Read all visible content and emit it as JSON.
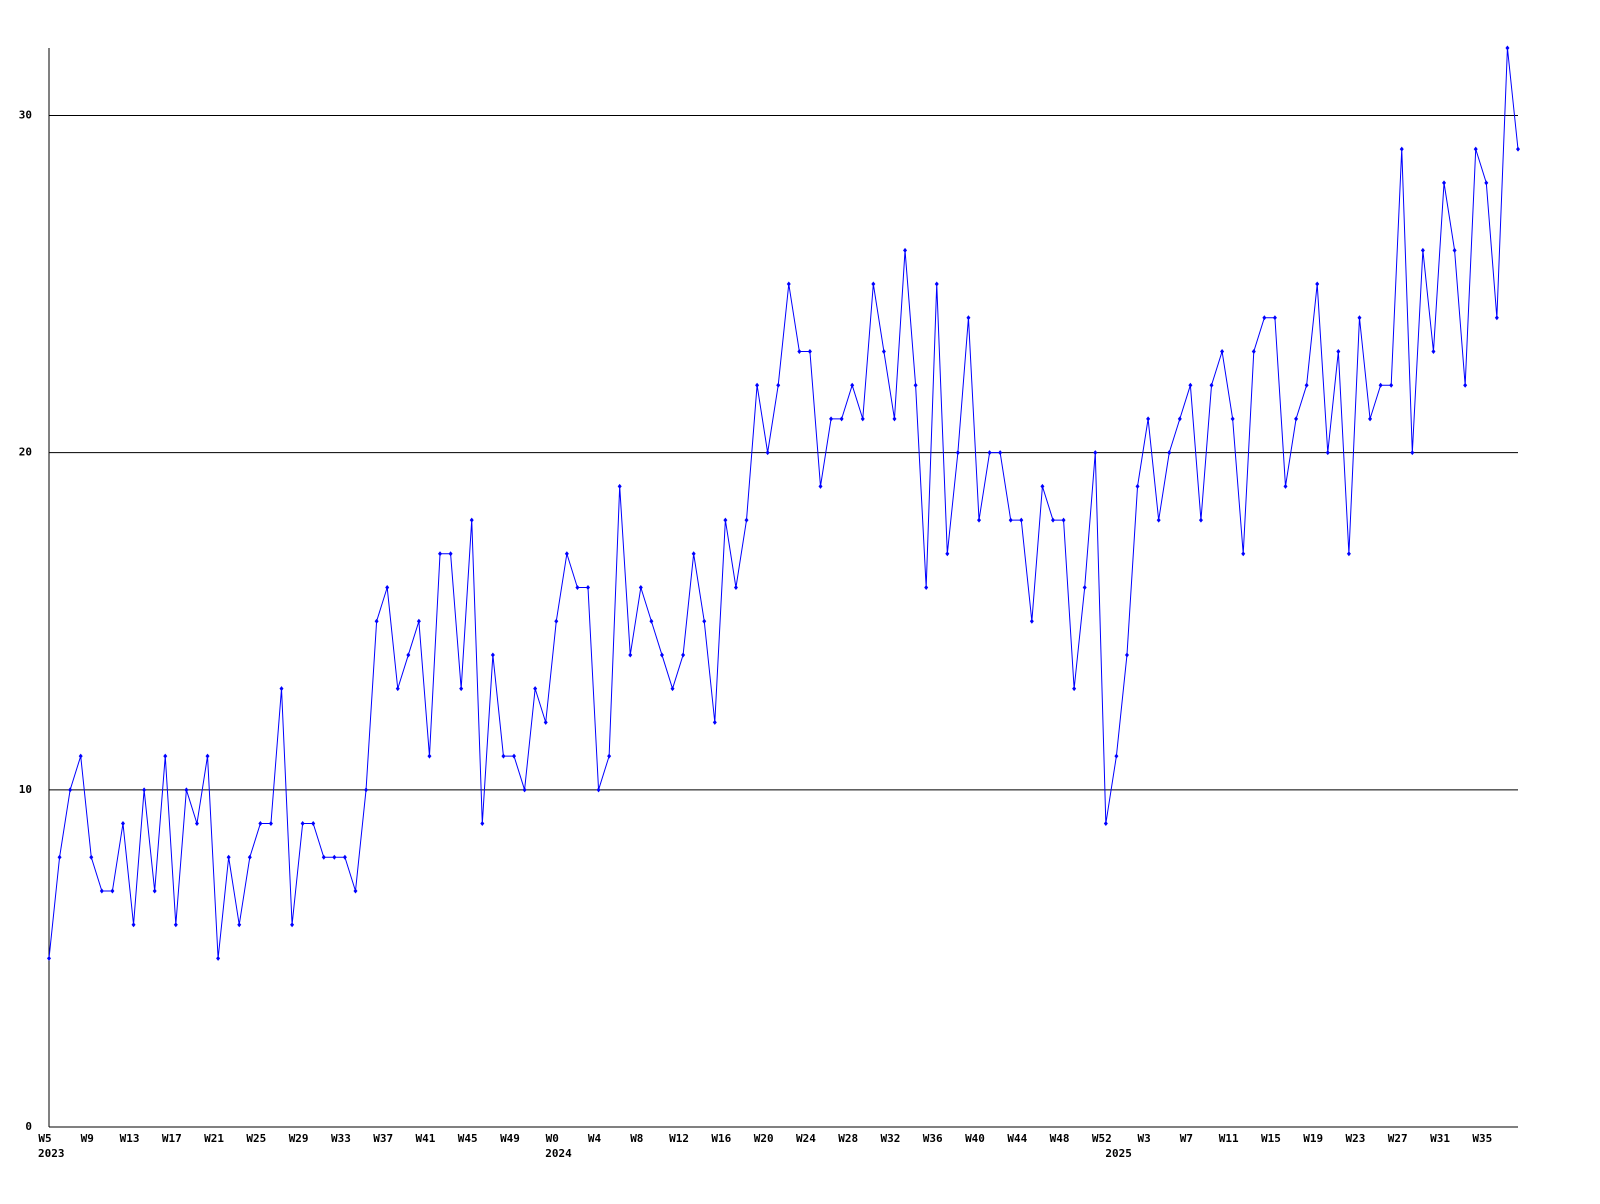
{
  "chart_data": {
    "type": "line",
    "categories": [
      "W5",
      null,
      null,
      null,
      "W9",
      null,
      null,
      null,
      "W13",
      null,
      null,
      null,
      "W17",
      null,
      null,
      null,
      "W21",
      null,
      null,
      null,
      "W25",
      null,
      null,
      null,
      "W29",
      null,
      null,
      null,
      "W33",
      null,
      null,
      null,
      "W37",
      null,
      null,
      null,
      "W41",
      null,
      null,
      null,
      "W45",
      null,
      null,
      null,
      "W49",
      null,
      null,
      null,
      "W0",
      null,
      null,
      null,
      "W4",
      null,
      null,
      null,
      "W8",
      null,
      null,
      null,
      "W12",
      null,
      null,
      null,
      "W16",
      null,
      null,
      null,
      "W20",
      null,
      null,
      null,
      "W24",
      null,
      null,
      null,
      "W28",
      null,
      null,
      null,
      "W32",
      null,
      null,
      null,
      "W36",
      null,
      null,
      null,
      "W40",
      null,
      null,
      null,
      "W44",
      null,
      null,
      null,
      "W48",
      null,
      null,
      null,
      "W52",
      null,
      null,
      null,
      "W3",
      null,
      null,
      null,
      "W7",
      null,
      null,
      null,
      "W11",
      null,
      null,
      null,
      "W15",
      null,
      null,
      null,
      "W19",
      null,
      null,
      null,
      "W23",
      null,
      null,
      null,
      "W27",
      null,
      null,
      null,
      "W31",
      null,
      null,
      null,
      "W35",
      null,
      null,
      null
    ],
    "category_years": [
      "2023",
      null,
      null,
      null,
      null,
      null,
      null,
      null,
      null,
      null,
      null,
      null,
      null,
      null,
      null,
      null,
      null,
      null,
      null,
      null,
      null,
      null,
      null,
      null,
      null,
      null,
      null,
      null,
      null,
      null,
      null,
      null,
      null,
      null,
      null,
      null,
      null,
      null,
      null,
      null,
      null,
      null,
      null,
      null,
      null,
      null,
      null,
      null,
      "2024",
      null,
      null,
      null,
      null,
      null,
      null,
      null,
      null,
      null,
      null,
      null,
      null,
      null,
      null,
      null,
      null,
      null,
      null,
      null,
      null,
      null,
      null,
      null,
      null,
      null,
      null,
      null,
      null,
      null,
      null,
      null,
      null,
      null,
      null,
      null,
      null,
      null,
      null,
      null,
      null,
      null,
      null,
      null,
      null,
      null,
      null,
      null,
      null,
      null,
      null,
      null,
      null,
      "2025",
      null,
      null,
      null,
      null,
      null,
      null,
      null,
      null,
      null,
      null,
      null,
      null,
      null,
      null,
      null,
      null,
      null,
      null,
      null,
      null,
      null,
      null,
      null,
      null,
      null,
      null,
      null,
      null,
      null,
      null,
      null,
      null,
      null,
      null,
      null,
      null,
      null,
      null
    ],
    "series": [
      {
        "color": "#0000ff",
        "values": [
          5,
          8,
          10,
          11,
          8,
          7,
          7,
          9,
          6,
          10,
          7,
          11,
          6,
          10,
          9,
          11,
          5,
          8,
          6,
          8,
          9,
          9,
          13,
          6,
          9,
          9,
          8,
          8,
          8,
          7,
          10,
          15,
          16,
          13,
          14,
          15,
          11,
          17,
          17,
          13,
          18,
          9,
          14,
          11,
          11,
          10,
          13,
          12,
          15,
          17,
          16,
          16,
          10,
          11,
          19,
          14,
          16,
          15,
          14,
          13,
          14,
          17,
          15,
          12,
          18,
          16,
          18,
          22,
          20,
          22,
          25,
          23,
          23,
          19,
          21,
          21,
          22,
          21,
          25,
          23,
          21,
          26,
          22,
          16,
          25,
          17,
          20,
          24,
          18,
          20,
          20,
          18,
          18,
          15,
          19,
          18,
          18,
          13,
          16,
          20,
          9,
          11,
          14,
          19,
          21,
          18,
          20,
          21,
          22,
          18,
          22,
          23,
          21,
          17,
          23,
          24,
          24,
          19,
          21,
          22,
          25,
          20,
          23,
          17,
          24,
          21,
          22,
          22,
          29,
          20,
          26,
          23,
          28,
          26,
          22,
          29,
          28,
          24,
          32,
          29
        ]
      }
    ],
    "ylim": [
      0,
      32
    ],
    "yticks": [
      0,
      10,
      20,
      30
    ],
    "grid": true
  }
}
